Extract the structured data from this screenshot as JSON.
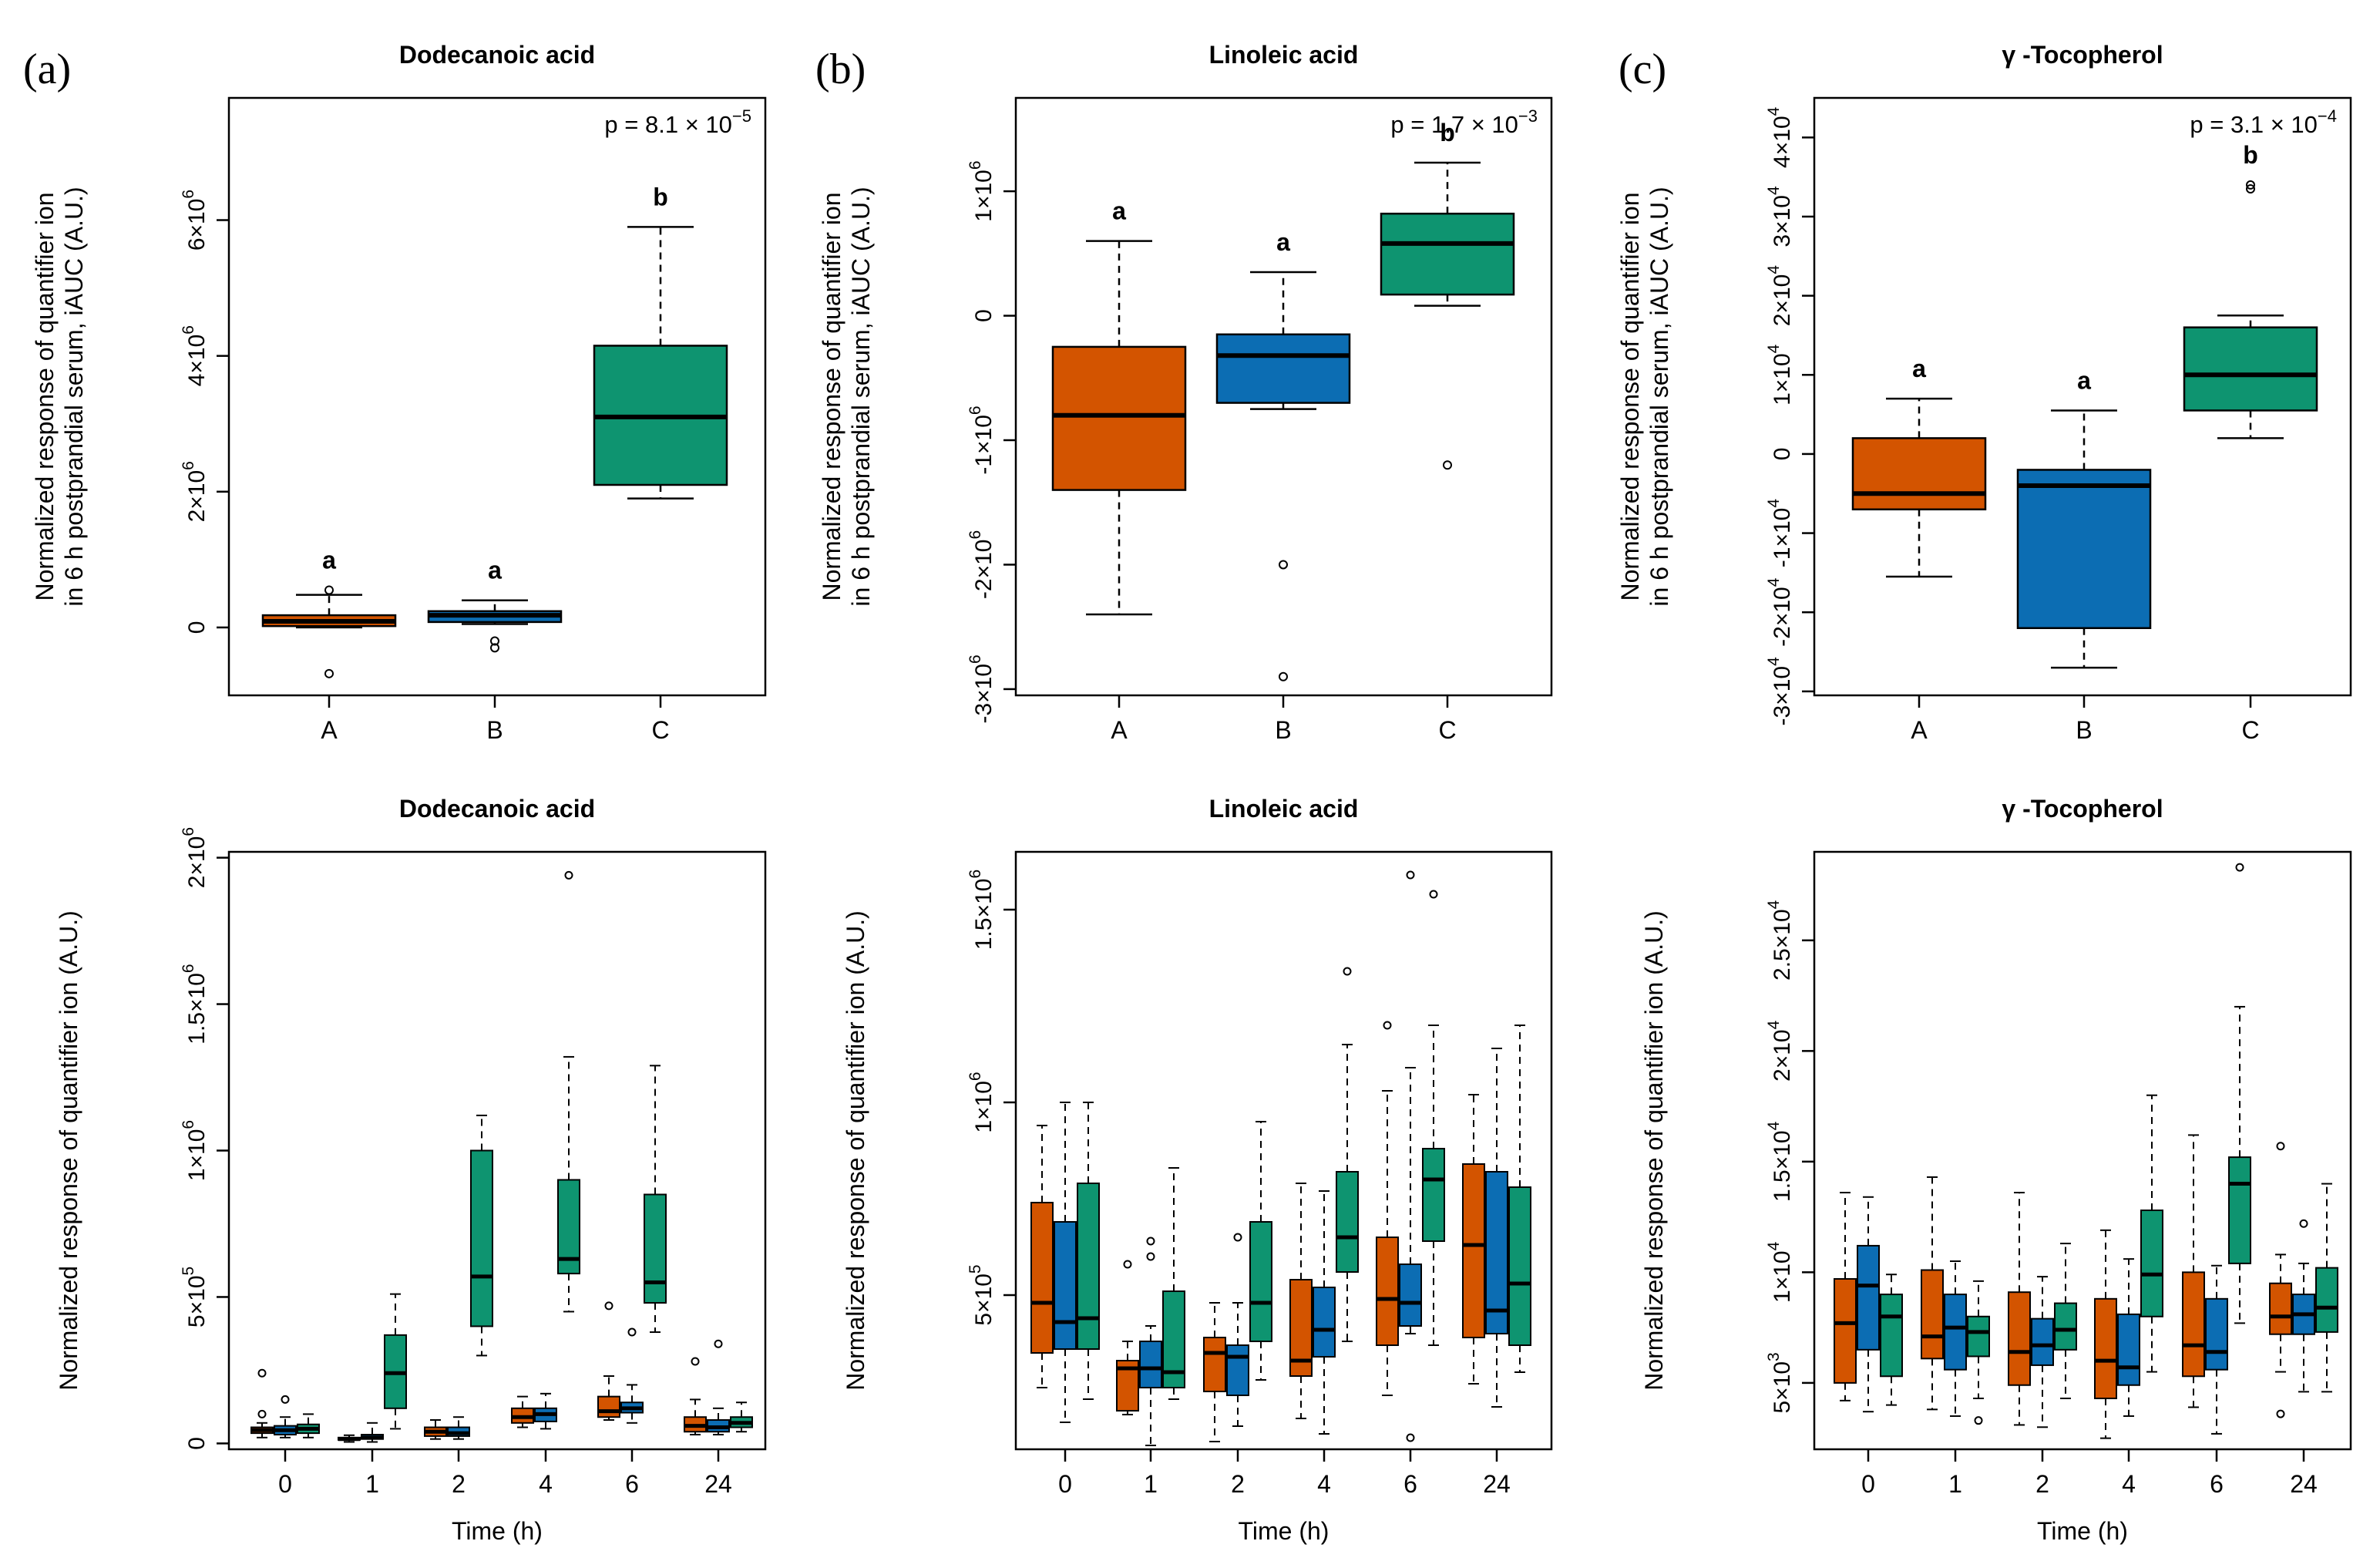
{
  "colors": {
    "A": "#d35400",
    "B": "#0c6db3",
    "C": "#0e9470",
    "axis": "#000000"
  },
  "panel_labels": [
    "(a)",
    "(b)",
    "(c)"
  ],
  "chart_data": [
    {
      "id": "top-a",
      "type": "boxplot",
      "title": "Dodecanoic acid",
      "ylabel": [
        "Normalized response of quantifier ion",
        "in 6 h postprandial serum, iAUC (A.U.)"
      ],
      "xlabel": "",
      "ylim": [
        -1000000,
        7800000
      ],
      "yticks": [
        {
          "v": 0,
          "m": "0",
          "e": null
        },
        {
          "v": 2000000,
          "m": "2",
          "e": "6"
        },
        {
          "v": 4000000,
          "m": "4",
          "e": "6"
        },
        {
          "v": 6000000,
          "m": "6",
          "e": "6"
        }
      ],
      "pvalue": {
        "prefix": "p = 8.1",
        "exp": "−5"
      },
      "categories": [
        "A",
        "B",
        "C"
      ],
      "boxes": [
        {
          "group": "A",
          "min": 0,
          "q1": 20000,
          "median": 90000,
          "q3": 180000,
          "max": 480000,
          "outliers": [
            550000,
            -680000
          ],
          "letter": "a"
        },
        {
          "group": "B",
          "min": 50000,
          "q1": 80000,
          "median": 180000,
          "q3": 240000,
          "max": 400000,
          "outliers": [
            -200000,
            -300000
          ],
          "letter": "a"
        },
        {
          "group": "C",
          "min": 1900000,
          "q1": 2100000,
          "median": 3100000,
          "q3": 4150000,
          "max": 5900000,
          "outliers": [],
          "letter": "b"
        }
      ]
    },
    {
      "id": "top-b",
      "type": "boxplot",
      "title": "Linoleic acid",
      "ylabel": [
        "Normalized response of quantifier ion",
        "in 6 h postprandial serum, iAUC (A.U.)"
      ],
      "xlabel": "",
      "ylim": [
        -3050000,
        1750000
      ],
      "yticks": [
        {
          "v": -3000000,
          "m": "-3",
          "e": "6"
        },
        {
          "v": -2000000,
          "m": "-2",
          "e": "6"
        },
        {
          "v": -1000000,
          "m": "-1",
          "e": "6"
        },
        {
          "v": 0,
          "m": "0",
          "e": null
        },
        {
          "v": 1000000,
          "m": "1",
          "e": "6"
        }
      ],
      "pvalue": {
        "prefix": "p = 1.7",
        "exp": "−3"
      },
      "categories": [
        "A",
        "B",
        "C"
      ],
      "boxes": [
        {
          "group": "A",
          "min": -2400000,
          "q1": -1400000,
          "median": -800000,
          "q3": -250000,
          "max": 600000,
          "outliers": [],
          "letter": "a"
        },
        {
          "group": "B",
          "min": -750000,
          "q1": -700000,
          "median": -320000,
          "q3": -150000,
          "max": 350000,
          "outliers": [
            -2000000,
            -2900000
          ],
          "letter": "a"
        },
        {
          "group": "C",
          "min": 80000,
          "q1": 170000,
          "median": 580000,
          "q3": 820000,
          "max": 1230000,
          "outliers": [
            -1200000
          ],
          "letter": "b"
        }
      ]
    },
    {
      "id": "top-c",
      "type": "boxplot",
      "title": "γ -Tocopherol",
      "ylabel": [
        "Normalized response of quantifier ion",
        "in 6 h postprandial serum, iAUC (A.U.)"
      ],
      "xlabel": "",
      "ylim": [
        -30500,
        45000
      ],
      "yticks": [
        {
          "v": -30000,
          "m": "-3",
          "e": "4"
        },
        {
          "v": -20000,
          "m": "-2",
          "e": "4"
        },
        {
          "v": -10000,
          "m": "-1",
          "e": "4"
        },
        {
          "v": 0,
          "m": "0",
          "e": null
        },
        {
          "v": 10000,
          "m": "1",
          "e": "4"
        },
        {
          "v": 20000,
          "m": "2",
          "e": "4"
        },
        {
          "v": 30000,
          "m": "3",
          "e": "4"
        },
        {
          "v": 40000,
          "m": "4",
          "e": "4"
        }
      ],
      "pvalue": {
        "prefix": "p = 3.1",
        "exp": "−4"
      },
      "categories": [
        "A",
        "B",
        "C"
      ],
      "boxes": [
        {
          "group": "A",
          "min": -15500,
          "q1": -7000,
          "median": -5000,
          "q3": 2000,
          "max": 7000,
          "outliers": [],
          "letter": "a"
        },
        {
          "group": "B",
          "min": -27000,
          "q1": -22000,
          "median": -4000,
          "q3": -2000,
          "max": 5500,
          "outliers": [],
          "letter": "a"
        },
        {
          "group": "C",
          "min": 2000,
          "q1": 5500,
          "median": 10000,
          "q3": 16000,
          "max": 17500,
          "outliers": [
            33500,
            34000
          ],
          "letter": "b"
        }
      ]
    },
    {
      "id": "bottom-a",
      "type": "boxplot",
      "title": "Dodecanoic acid",
      "ylabel": [
        "Normalized response of quantifier ion (A.U.)"
      ],
      "xlabel": "Time (h)",
      "ylim": [
        -20000,
        2020000
      ],
      "yticks": [
        {
          "v": 0,
          "m": "0",
          "e": null
        },
        {
          "v": 500000,
          "m": "5",
          "e": "5"
        },
        {
          "v": 1000000,
          "m": "1",
          "e": "6"
        },
        {
          "v": 1500000,
          "m": "1.5",
          "e": "6"
        },
        {
          "v": 2000000,
          "m": "2",
          "e": "6"
        }
      ],
      "categories": [
        "0",
        "1",
        "2",
        "4",
        "6",
        "24"
      ],
      "boxes": [
        {
          "time": "0",
          "group": "A",
          "min": 20000,
          "q1": 35000,
          "median": 45000,
          "q3": 55000,
          "max": 70000,
          "outliers": [
            100000,
            240000
          ]
        },
        {
          "time": "0",
          "group": "B",
          "min": 20000,
          "q1": 30000,
          "median": 45000,
          "q3": 60000,
          "max": 90000,
          "outliers": [
            150000
          ]
        },
        {
          "time": "0",
          "group": "C",
          "min": 20000,
          "q1": 35000,
          "median": 50000,
          "q3": 65000,
          "max": 100000,
          "outliers": []
        },
        {
          "time": "1",
          "group": "A",
          "min": 5000,
          "q1": 12000,
          "median": 15000,
          "q3": 20000,
          "max": 28000,
          "outliers": []
        },
        {
          "time": "1",
          "group": "B",
          "min": 5000,
          "q1": 15000,
          "median": 20000,
          "q3": 30000,
          "max": 70000,
          "outliers": []
        },
        {
          "time": "1",
          "group": "C",
          "min": 50000,
          "q1": 120000,
          "median": 240000,
          "q3": 370000,
          "max": 510000,
          "outliers": []
        },
        {
          "time": "2",
          "group": "A",
          "min": 15000,
          "q1": 25000,
          "median": 40000,
          "q3": 55000,
          "max": 80000,
          "outliers": []
        },
        {
          "time": "2",
          "group": "B",
          "min": 15000,
          "q1": 25000,
          "median": 35000,
          "q3": 55000,
          "max": 90000,
          "outliers": []
        },
        {
          "time": "2",
          "group": "C",
          "min": 300000,
          "q1": 400000,
          "median": 570000,
          "q3": 1000000,
          "max": 1120000,
          "outliers": []
        },
        {
          "time": "4",
          "group": "A",
          "min": 55000,
          "q1": 70000,
          "median": 90000,
          "q3": 120000,
          "max": 160000,
          "outliers": []
        },
        {
          "time": "4",
          "group": "B",
          "min": 50000,
          "q1": 75000,
          "median": 100000,
          "q3": 120000,
          "max": 170000,
          "outliers": []
        },
        {
          "time": "4",
          "group": "C",
          "min": 450000,
          "q1": 580000,
          "median": 630000,
          "q3": 900000,
          "max": 1320000,
          "outliers": [
            1940000
          ]
        },
        {
          "time": "6",
          "group": "A",
          "min": 80000,
          "q1": 90000,
          "median": 110000,
          "q3": 160000,
          "max": 230000,
          "outliers": [
            470000
          ]
        },
        {
          "time": "6",
          "group": "B",
          "min": 70000,
          "q1": 105000,
          "median": 120000,
          "q3": 140000,
          "max": 200000,
          "outliers": [
            380000
          ]
        },
        {
          "time": "6",
          "group": "C",
          "min": 380000,
          "q1": 480000,
          "median": 550000,
          "q3": 850000,
          "max": 1290000,
          "outliers": []
        },
        {
          "time": "24",
          "group": "A",
          "min": 30000,
          "q1": 40000,
          "median": 60000,
          "q3": 90000,
          "max": 150000,
          "outliers": [
            280000
          ]
        },
        {
          "time": "24",
          "group": "B",
          "min": 30000,
          "q1": 40000,
          "median": 55000,
          "q3": 80000,
          "max": 120000,
          "outliers": [
            340000
          ]
        },
        {
          "time": "24",
          "group": "C",
          "min": 40000,
          "q1": 55000,
          "median": 70000,
          "q3": 90000,
          "max": 140000,
          "outliers": []
        }
      ]
    },
    {
      "id": "bottom-b",
      "type": "boxplot",
      "title": "Linoleic acid",
      "ylabel": [
        "Normalized response of quantifier ion (A.U.)"
      ],
      "xlabel": "Time (h)",
      "ylim": [
        100000,
        1650000
      ],
      "yticks": [
        {
          "v": 500000,
          "m": "5",
          "e": "5"
        },
        {
          "v": 1000000,
          "m": "1",
          "e": "6"
        },
        {
          "v": 1500000,
          "m": "1.5",
          "e": "6"
        }
      ],
      "categories": [
        "0",
        "1",
        "2",
        "4",
        "6",
        "24"
      ],
      "boxes": [
        {
          "time": "0",
          "group": "A",
          "min": 260000,
          "q1": 350000,
          "median": 480000,
          "q3": 740000,
          "max": 940000,
          "outliers": []
        },
        {
          "time": "0",
          "group": "B",
          "min": 170000,
          "q1": 360000,
          "median": 430000,
          "q3": 690000,
          "max": 1000000,
          "outliers": []
        },
        {
          "time": "0",
          "group": "C",
          "min": 230000,
          "q1": 360000,
          "median": 440000,
          "q3": 790000,
          "max": 1000000,
          "outliers": []
        },
        {
          "time": "1",
          "group": "A",
          "min": 190000,
          "q1": 200000,
          "median": 310000,
          "q3": 330000,
          "max": 380000,
          "outliers": [
            580000
          ]
        },
        {
          "time": "1",
          "group": "B",
          "min": 110000,
          "q1": 260000,
          "median": 310000,
          "q3": 380000,
          "max": 420000,
          "outliers": [
            640000,
            600000
          ]
        },
        {
          "time": "1",
          "group": "C",
          "min": 230000,
          "q1": 260000,
          "median": 300000,
          "q3": 510000,
          "max": 830000,
          "outliers": []
        },
        {
          "time": "2",
          "group": "A",
          "min": 120000,
          "q1": 250000,
          "median": 350000,
          "q3": 390000,
          "max": 480000,
          "outliers": []
        },
        {
          "time": "2",
          "group": "B",
          "min": 160000,
          "q1": 240000,
          "median": 340000,
          "q3": 370000,
          "max": 480000,
          "outliers": [
            650000
          ]
        },
        {
          "time": "2",
          "group": "C",
          "min": 280000,
          "q1": 380000,
          "median": 480000,
          "q3": 690000,
          "max": 950000,
          "outliers": []
        },
        {
          "time": "4",
          "group": "A",
          "min": 180000,
          "q1": 290000,
          "median": 330000,
          "q3": 540000,
          "max": 790000,
          "outliers": []
        },
        {
          "time": "4",
          "group": "B",
          "min": 140000,
          "q1": 340000,
          "median": 410000,
          "q3": 520000,
          "max": 770000,
          "outliers": []
        },
        {
          "time": "4",
          "group": "C",
          "min": 380000,
          "q1": 560000,
          "median": 650000,
          "q3": 820000,
          "max": 1150000,
          "outliers": [
            1340000
          ]
        },
        {
          "time": "6",
          "group": "A",
          "min": 240000,
          "q1": 370000,
          "median": 490000,
          "q3": 650000,
          "max": 1030000,
          "outliers": [
            1200000
          ]
        },
        {
          "time": "6",
          "group": "B",
          "min": 400000,
          "q1": 420000,
          "median": 480000,
          "q3": 580000,
          "max": 1090000,
          "outliers": [
            130000,
            1590000
          ]
        },
        {
          "time": "6",
          "group": "C",
          "min": 370000,
          "q1": 640000,
          "median": 800000,
          "q3": 880000,
          "max": 1200000,
          "outliers": [
            1540000
          ]
        },
        {
          "time": "24",
          "group": "A",
          "min": 270000,
          "q1": 390000,
          "median": 630000,
          "q3": 840000,
          "max": 1020000,
          "outliers": []
        },
        {
          "time": "24",
          "group": "B",
          "min": 210000,
          "q1": 400000,
          "median": 460000,
          "q3": 820000,
          "max": 1140000,
          "outliers": []
        },
        {
          "time": "24",
          "group": "C",
          "min": 300000,
          "q1": 370000,
          "median": 530000,
          "q3": 780000,
          "max": 1200000,
          "outliers": []
        }
      ]
    },
    {
      "id": "bottom-c",
      "type": "boxplot",
      "title": "γ -Tocopherol",
      "ylabel": [
        "Normalized response of quantifier ion (A.U.)"
      ],
      "xlabel": "Time (h)",
      "ylim": [
        2000,
        29000
      ],
      "yticks": [
        {
          "v": 5000,
          "m": "5",
          "e": "3"
        },
        {
          "v": 10000,
          "m": "1",
          "e": "4"
        },
        {
          "v": 15000,
          "m": "1.5",
          "e": "4"
        },
        {
          "v": 20000,
          "m": "2",
          "e": "4"
        },
        {
          "v": 25000,
          "m": "2.5",
          "e": "4"
        }
      ],
      "categories": [
        "0",
        "1",
        "2",
        "4",
        "6",
        "24"
      ],
      "boxes": [
        {
          "time": "0",
          "group": "A",
          "min": 4200,
          "q1": 5000,
          "median": 7700,
          "q3": 9700,
          "max": 13600,
          "outliers": []
        },
        {
          "time": "0",
          "group": "B",
          "min": 3700,
          "q1": 6500,
          "median": 9400,
          "q3": 11200,
          "max": 13400,
          "outliers": []
        },
        {
          "time": "0",
          "group": "C",
          "min": 4000,
          "q1": 5300,
          "median": 8000,
          "q3": 9000,
          "max": 9900,
          "outliers": []
        },
        {
          "time": "1",
          "group": "A",
          "min": 3800,
          "q1": 6100,
          "median": 7100,
          "q3": 10100,
          "max": 14300,
          "outliers": []
        },
        {
          "time": "1",
          "group": "B",
          "min": 3500,
          "q1": 5600,
          "median": 7500,
          "q3": 9000,
          "max": 10500,
          "outliers": []
        },
        {
          "time": "1",
          "group": "C",
          "min": 4300,
          "q1": 6200,
          "median": 7300,
          "q3": 8000,
          "max": 9600,
          "outliers": [
            3300
          ]
        },
        {
          "time": "2",
          "group": "A",
          "min": 3100,
          "q1": 4900,
          "median": 6400,
          "q3": 9100,
          "max": 13600,
          "outliers": []
        },
        {
          "time": "2",
          "group": "B",
          "min": 3000,
          "q1": 5800,
          "median": 6700,
          "q3": 7900,
          "max": 9800,
          "outliers": []
        },
        {
          "time": "2",
          "group": "C",
          "min": 4300,
          "q1": 6500,
          "median": 7400,
          "q3": 8600,
          "max": 11300,
          "outliers": []
        },
        {
          "time": "4",
          "group": "A",
          "min": 2500,
          "q1": 4300,
          "median": 6000,
          "q3": 8800,
          "max": 11900,
          "outliers": []
        },
        {
          "time": "4",
          "group": "B",
          "min": 3500,
          "q1": 4900,
          "median": 5700,
          "q3": 8100,
          "max": 10600,
          "outliers": []
        },
        {
          "time": "4",
          "group": "C",
          "min": 5500,
          "q1": 8000,
          "median": 9900,
          "q3": 12800,
          "max": 18000,
          "outliers": []
        },
        {
          "time": "6",
          "group": "A",
          "min": 3900,
          "q1": 5300,
          "median": 6700,
          "q3": 10000,
          "max": 16200,
          "outliers": []
        },
        {
          "time": "6",
          "group": "B",
          "min": 2700,
          "q1": 5600,
          "median": 6400,
          "q3": 8800,
          "max": 10300,
          "outliers": []
        },
        {
          "time": "6",
          "group": "C",
          "min": 7700,
          "q1": 10400,
          "median": 14000,
          "q3": 15200,
          "max": 22000,
          "outliers": [
            28300
          ]
        },
        {
          "time": "24",
          "group": "A",
          "min": 5500,
          "q1": 7200,
          "median": 8000,
          "q3": 9500,
          "max": 10800,
          "outliers": [
            3600,
            15700
          ]
        },
        {
          "time": "24",
          "group": "B",
          "min": 4600,
          "q1": 7200,
          "median": 8100,
          "q3": 9000,
          "max": 10400,
          "outliers": [
            12200
          ]
        },
        {
          "time": "24",
          "group": "C",
          "min": 4600,
          "q1": 7300,
          "median": 8400,
          "q3": 10200,
          "max": 14000,
          "outliers": []
        }
      ]
    }
  ]
}
